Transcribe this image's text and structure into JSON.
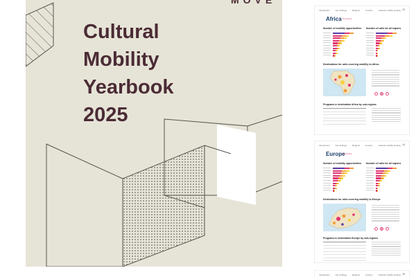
{
  "cover": {
    "logo": "MOVE",
    "title_lines": [
      "Cultural",
      "Mobility",
      "Yearbook",
      "2025"
    ],
    "colors": {
      "background": "#e6e4d7",
      "title": "#4b2b35",
      "lines": "#55534c"
    }
  },
  "thumbnails": [
    {
      "region": "Africa",
      "note": "54 countries",
      "page": "13",
      "nav": [
        "Introduction",
        "Key findings",
        "Regions",
        "Country",
        "Cultural mobility funding"
      ],
      "chart1_title": "Number of mobility opportunities",
      "chart2_title": "Number of calls for all regions",
      "chart1_values": [
        9,
        7,
        6,
        5,
        4,
        3,
        3,
        2,
        2,
        1
      ],
      "chart2_values": [
        10,
        8,
        5,
        4,
        3,
        2,
        2,
        1,
        1,
        1
      ],
      "map_title": "Destinations for calls covering mobility to Africa",
      "table_title": "Programs in destination Africa by sub-regions"
    },
    {
      "region": "Europe",
      "note": "44 countries",
      "page": "14",
      "nav": [
        "Introduction",
        "Key findings",
        "Regions",
        "Country",
        "Cultural mobility funding"
      ],
      "chart1_title": "Number of mobility opportunities",
      "chart2_title": "Number of calls for all regions",
      "chart1_values": [
        10,
        8,
        7,
        6,
        5,
        4,
        3,
        2,
        2,
        1
      ],
      "chart2_values": [
        10,
        7,
        6,
        5,
        4,
        3,
        2,
        2,
        1,
        1
      ],
      "map_title": "Destinations for calls covering mobility to Europe",
      "table_title": "Programs in destination Europe by sub-regions"
    },
    {
      "region": "",
      "note": "",
      "page": "15",
      "nav": [
        "Introduction",
        "Key findings",
        "Regions",
        "Country",
        "Cultural mobility funding"
      ]
    }
  ],
  "colors": {
    "accent_pink": "#e0336f",
    "accent_orange": "#f29a3b",
    "accent_yellow": "#f6cf3d",
    "accent_purple": "#5a3aa6",
    "region_blue": "#1c3f6a"
  }
}
